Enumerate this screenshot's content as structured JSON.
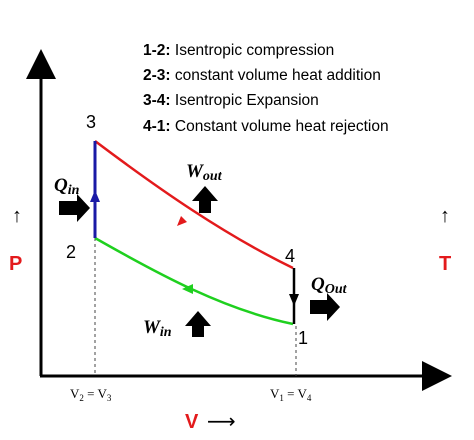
{
  "legend": [
    {
      "code": "1-2:",
      "text": " Isentropic compression"
    },
    {
      "code": "2-3:",
      "text": " constant volume heat addition"
    },
    {
      "code": "3-4:",
      "text": " Isentropic Expansion"
    },
    {
      "code": "4-1:",
      "text": " Constant volume heat rejection"
    }
  ],
  "states": {
    "s1": "1",
    "s2": "2",
    "s3": "3",
    "s4": "4"
  },
  "axes": {
    "left": {
      "arrow": "↑",
      "label": "P"
    },
    "right": {
      "arrow": "↑",
      "label": "T"
    },
    "bottom": {
      "label": "V",
      "arrow": "⟶"
    },
    "tick_left": {
      "a": "V",
      "a_sub": "2",
      "eq": " = ",
      "b": "V",
      "b_sub": "3"
    },
    "tick_right": {
      "a": "V",
      "a_sub": "1",
      "eq": " = ",
      "b": "V",
      "b_sub": "4"
    }
  },
  "annotations": {
    "q_in": {
      "main": "Q",
      "sub": "in"
    },
    "q_out": {
      "main": "Q",
      "sub": "Out"
    },
    "w_out": {
      "main": "W",
      "sub": "out"
    },
    "w_in": {
      "main": "W",
      "sub": "in"
    }
  },
  "colors": {
    "expansion": "#e31a1c",
    "compression": "#1fd01f",
    "heat_addition": "#1a1aa6",
    "heat_rejection": "#000000",
    "axis_label": "#e31a1c"
  }
}
